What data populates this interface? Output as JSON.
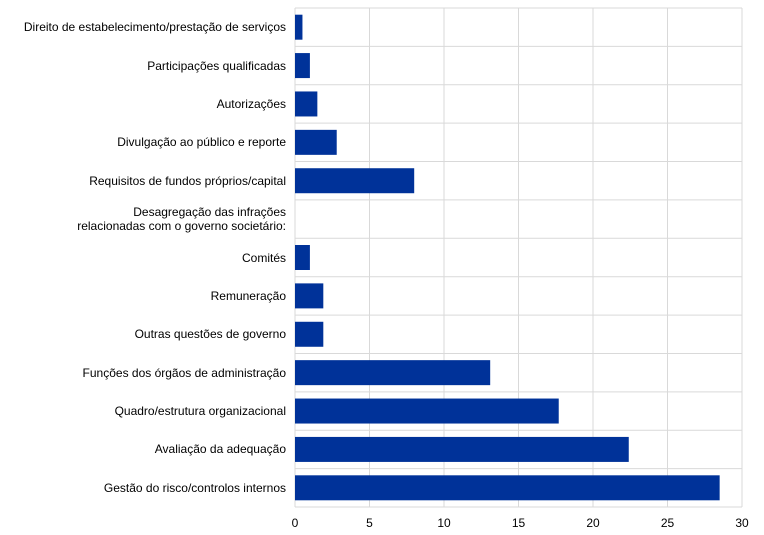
{
  "chart_data": {
    "type": "barh",
    "categories": [
      "Direito de estabelecimento/prestação de serviços",
      "Participações qualificadas",
      "Autorizações",
      "Divulgação ao público e reporte",
      "Requisitos de fundos próprios/capital",
      "Desagregação das infrações\nrelacionadas com o governo societário:",
      "Comités",
      "Remuneração",
      "Outras questões de governo",
      "Funções dos órgãos de administração",
      "Quadro/estrutura organizacional",
      "Avaliação da adequação",
      "Gestão do risco/controlos internos"
    ],
    "values": [
      0.5,
      1.0,
      1.5,
      2.8,
      8.0,
      null,
      1.0,
      1.9,
      1.9,
      13.1,
      17.7,
      22.4,
      28.5
    ],
    "color": "#003299",
    "xlim": [
      0,
      30
    ],
    "xticks": [
      0,
      5,
      10,
      15,
      20,
      25,
      30
    ],
    "grid": true
  }
}
